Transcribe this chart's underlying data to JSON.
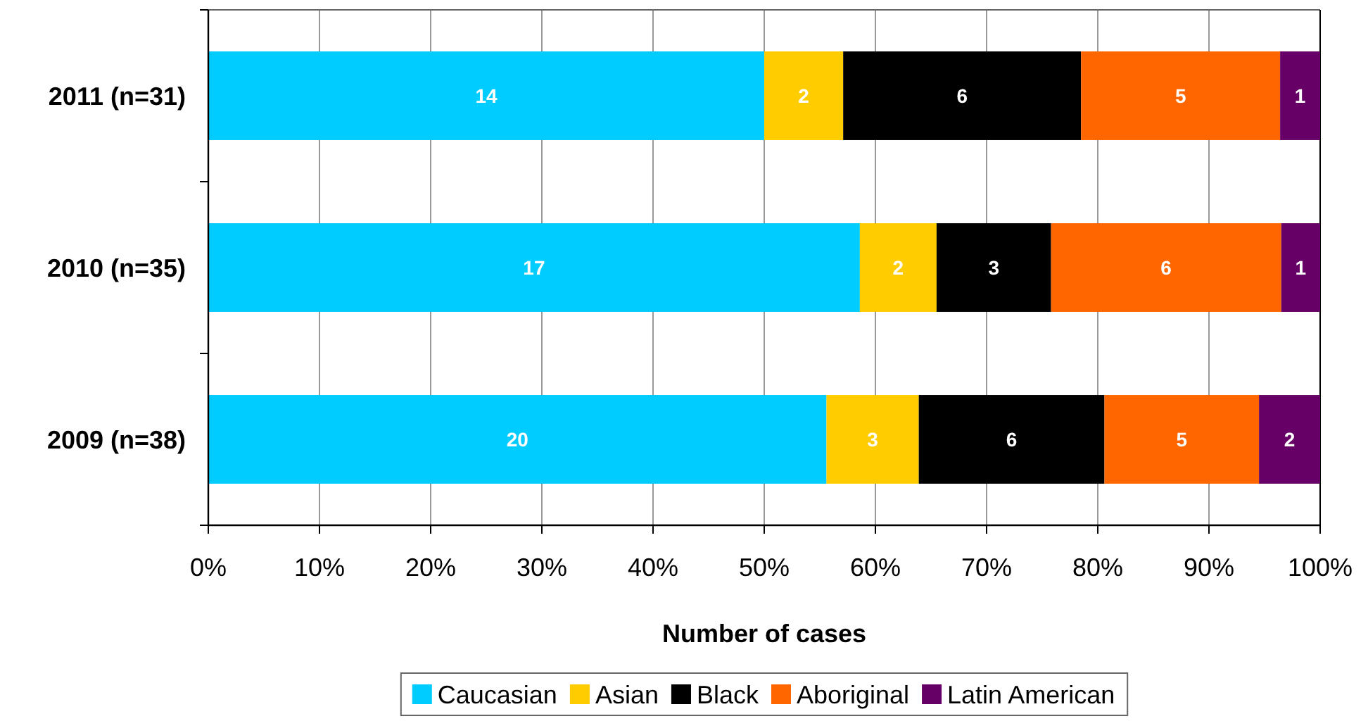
{
  "chart_data": {
    "type": "bar",
    "orientation": "horizontal",
    "stacked": true,
    "categories": [
      "2011 (n=31)",
      "2010 (n=35)",
      "2009 (n=38)"
    ],
    "series": [
      {
        "name": "Caucasian",
        "color": "#00ccff",
        "values": [
          50.0,
          58.6,
          55.6
        ]
      },
      {
        "name": "Asian",
        "color": "#ffcc00",
        "values": [
          7.1,
          6.9,
          8.3
        ]
      },
      {
        "name": "Black",
        "color": "#000000",
        "values": [
          21.4,
          10.3,
          16.7
        ]
      },
      {
        "name": "Aboriginal",
        "color": "#ff6600",
        "values": [
          17.9,
          20.7,
          13.9
        ]
      },
      {
        "name": "Latin American",
        "color": "#660066",
        "values": [
          3.6,
          3.5,
          5.5
        ]
      }
    ],
    "annotations": [
      "14",
      "2",
      "6",
      "5",
      "1",
      "17",
      "2",
      "3",
      "6",
      "1",
      "20",
      "3",
      "6",
      "5",
      "2"
    ],
    "xlim": [
      0,
      100
    ],
    "xticks": [
      {
        "value": 0,
        "label": "0%"
      },
      {
        "value": 10,
        "label": "10%"
      },
      {
        "value": 20,
        "label": "20%"
      },
      {
        "value": 30,
        "label": "30%"
      },
      {
        "value": 40,
        "label": "40%"
      },
      {
        "value": 50,
        "label": "50%"
      },
      {
        "value": 60,
        "label": "60%"
      },
      {
        "value": 70,
        "label": "70%"
      },
      {
        "value": 80,
        "label": "80%"
      },
      {
        "value": 90,
        "label": "90%"
      },
      {
        "value": 100,
        "label": "100%"
      }
    ],
    "xlabel": "Number of cases",
    "grid": "x",
    "legend": "bottom"
  }
}
